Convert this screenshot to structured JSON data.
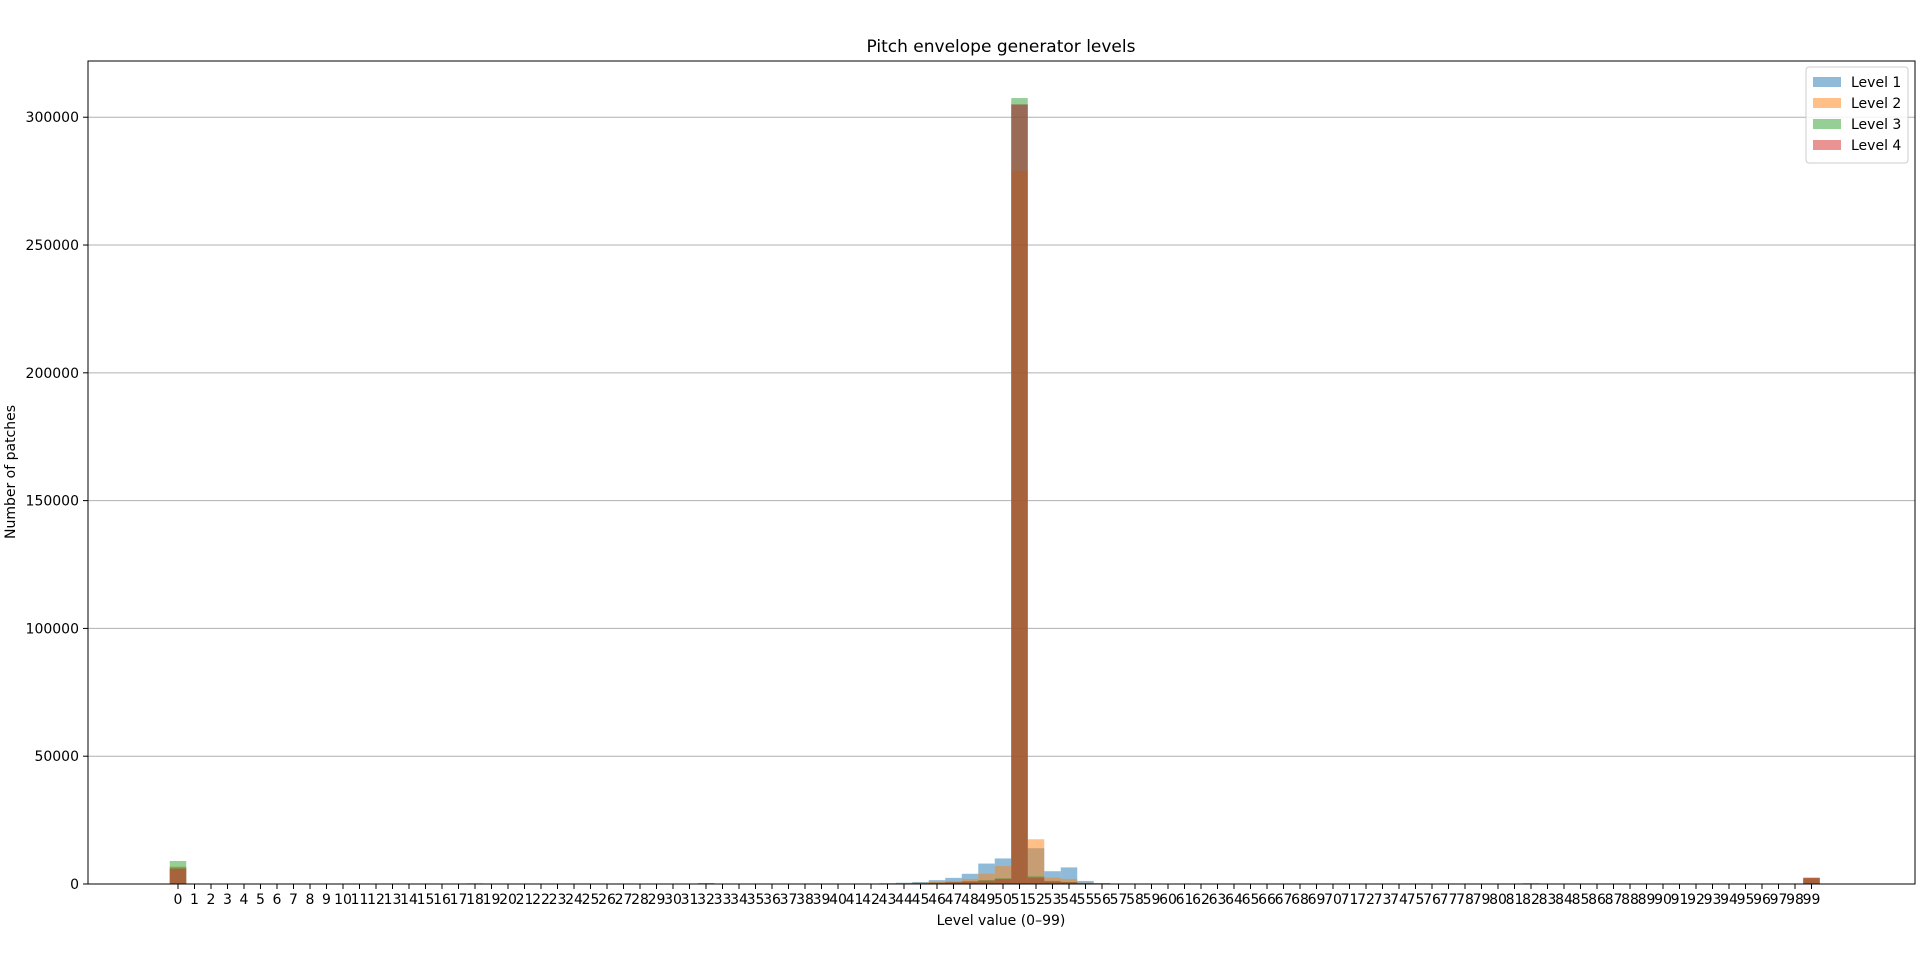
{
  "chart_data": {
    "type": "bar",
    "title": "Pitch envelope generator levels",
    "xlabel": "Level value (0–99)",
    "ylabel": "Number of patches",
    "ylim": [
      0,
      322000
    ],
    "yticks": [
      0,
      50000,
      100000,
      150000,
      200000,
      250000,
      300000
    ],
    "grid": "y",
    "legend_position": "top-right",
    "bar_alpha": 0.5,
    "categories": [
      "0",
      "1",
      "2",
      "3",
      "4",
      "5",
      "6",
      "7",
      "8",
      "9",
      "10",
      "11",
      "12",
      "13",
      "14",
      "15",
      "16",
      "17",
      "18",
      "19",
      "20",
      "21",
      "22",
      "23",
      "24",
      "25",
      "26",
      "27",
      "28",
      "29",
      "30",
      "31",
      "32",
      "33",
      "34",
      "35",
      "36",
      "37",
      "38",
      "39",
      "40",
      "41",
      "42",
      "43",
      "44",
      "45",
      "46",
      "47",
      "48",
      "49",
      "50",
      "51",
      "52",
      "53",
      "54",
      "55",
      "56",
      "57",
      "58",
      "59",
      "60",
      "61",
      "62",
      "63",
      "64",
      "65",
      "66",
      "67",
      "68",
      "69",
      "70",
      "71",
      "72",
      "73",
      "74",
      "75",
      "76",
      "77",
      "78",
      "79",
      "80",
      "81",
      "82",
      "83",
      "84",
      "85",
      "86",
      "87",
      "88",
      "89",
      "90",
      "91",
      "92",
      "93",
      "94",
      "95",
      "96",
      "97",
      "98",
      "99"
    ],
    "series": [
      {
        "name": "Level 1",
        "color": "#1f77b4",
        "values": [
          6500,
          120,
          60,
          50,
          40,
          40,
          30,
          30,
          30,
          30,
          30,
          30,
          30,
          30,
          30,
          30,
          30,
          30,
          200,
          30,
          30,
          30,
          30,
          30,
          30,
          30,
          30,
          30,
          30,
          30,
          30,
          30,
          250,
          30,
          40,
          40,
          50,
          60,
          70,
          80,
          100,
          150,
          200,
          300,
          500,
          800,
          1500,
          2400,
          4000,
          8000,
          10000,
          305000,
          14000,
          5000,
          6500,
          1200,
          400,
          200,
          100,
          80,
          60,
          50,
          40,
          40,
          30,
          30,
          30,
          30,
          30,
          30,
          30,
          30,
          30,
          30,
          30,
          30,
          30,
          30,
          60,
          40,
          30,
          30,
          40,
          60,
          30,
          30,
          30,
          30,
          30,
          30,
          30,
          30,
          30,
          30,
          30,
          30,
          30,
          30,
          30,
          2400
        ]
      },
      {
        "name": "Level 2",
        "color": "#ff7f0e",
        "values": [
          6800,
          100,
          50,
          40,
          30,
          30,
          30,
          30,
          30,
          30,
          30,
          30,
          30,
          30,
          30,
          30,
          30,
          30,
          300,
          30,
          30,
          30,
          30,
          30,
          30,
          30,
          30,
          30,
          30,
          30,
          30,
          30,
          200,
          30,
          30,
          30,
          40,
          40,
          50,
          60,
          80,
          100,
          150,
          200,
          300,
          500,
          800,
          1200,
          2000,
          4000,
          7000,
          279000,
          17500,
          2500,
          2000,
          500,
          200,
          100,
          80,
          60,
          50,
          40,
          30,
          30,
          30,
          30,
          30,
          30,
          30,
          30,
          30,
          30,
          30,
          30,
          30,
          30,
          30,
          30,
          40,
          30,
          30,
          30,
          30,
          40,
          30,
          30,
          30,
          30,
          30,
          30,
          30,
          30,
          30,
          30,
          30,
          30,
          30,
          30,
          30,
          2300
        ]
      },
      {
        "name": "Level 3",
        "color": "#2ca02c",
        "values": [
          9000,
          100,
          50,
          40,
          30,
          30,
          30,
          30,
          30,
          30,
          30,
          30,
          30,
          30,
          30,
          30,
          30,
          30,
          150,
          30,
          30,
          30,
          30,
          30,
          30,
          30,
          30,
          30,
          30,
          30,
          30,
          30,
          150,
          30,
          30,
          30,
          30,
          30,
          40,
          50,
          60,
          80,
          100,
          150,
          200,
          300,
          500,
          700,
          1000,
          1500,
          2200,
          307500,
          3000,
          1200,
          800,
          300,
          150,
          80,
          60,
          50,
          40,
          30,
          30,
          30,
          30,
          30,
          30,
          30,
          30,
          30,
          30,
          30,
          30,
          30,
          30,
          30,
          30,
          30,
          30,
          30,
          30,
          30,
          30,
          30,
          30,
          30,
          30,
          30,
          30,
          30,
          30,
          30,
          30,
          30,
          30,
          30,
          30,
          30,
          30,
          2200
        ]
      },
      {
        "name": "Level 4",
        "color": "#d62728",
        "values": [
          6000,
          100,
          50,
          40,
          30,
          30,
          30,
          30,
          30,
          30,
          30,
          30,
          30,
          30,
          30,
          30,
          30,
          30,
          150,
          30,
          30,
          30,
          30,
          30,
          30,
          30,
          30,
          30,
          30,
          30,
          30,
          30,
          350,
          30,
          30,
          30,
          30,
          30,
          40,
          50,
          60,
          80,
          100,
          150,
          200,
          300,
          500,
          700,
          1000,
          1300,
          2000,
          305000,
          2500,
          1000,
          700,
          300,
          150,
          80,
          60,
          50,
          40,
          30,
          30,
          30,
          30,
          30,
          30,
          30,
          30,
          30,
          30,
          30,
          30,
          30,
          30,
          30,
          30,
          30,
          30,
          30,
          30,
          30,
          300,
          30,
          30,
          30,
          30,
          30,
          30,
          30,
          30,
          30,
          30,
          30,
          30,
          30,
          30,
          30,
          30,
          2500
        ]
      }
    ]
  }
}
